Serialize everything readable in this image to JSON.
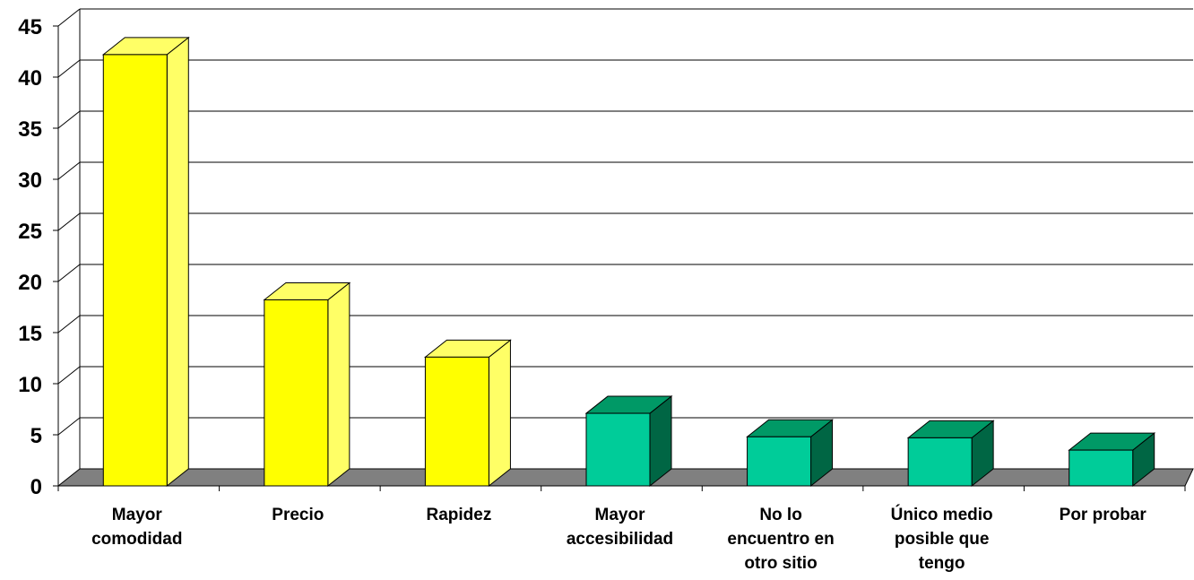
{
  "chart_data": {
    "type": "bar",
    "title": "",
    "xlabel": "",
    "ylabel": "",
    "ylim": [
      0,
      45
    ],
    "yticks": [
      0,
      5,
      10,
      15,
      20,
      25,
      30,
      35,
      40,
      45
    ],
    "grid": true,
    "categories": [
      [
        "Mayor",
        "comodidad"
      ],
      [
        "Precio"
      ],
      [
        "Rapidez"
      ],
      [
        "Mayor",
        "accesibilidad"
      ],
      [
        "No lo",
        "encuentro en",
        "otro sitio"
      ],
      [
        "Único medio",
        "posible que",
        "tengo"
      ],
      [
        "Por probar"
      ]
    ],
    "values": [
      42.2,
      18.2,
      12.6,
      7.1,
      4.8,
      4.7,
      3.5
    ],
    "colors": [
      {
        "front": "#ffff00",
        "side": "#ffff66",
        "top": "#ffff66"
      },
      {
        "front": "#ffff00",
        "side": "#ffff66",
        "top": "#ffff66"
      },
      {
        "front": "#ffff00",
        "side": "#ffff66",
        "top": "#ffff66"
      },
      {
        "front": "#00cc99",
        "side": "#006644",
        "top": "#009966"
      },
      {
        "front": "#00cc99",
        "side": "#006644",
        "top": "#009966"
      },
      {
        "front": "#00cc99",
        "side": "#006644",
        "top": "#009966"
      },
      {
        "front": "#00cc99",
        "side": "#006644",
        "top": "#009966"
      }
    ],
    "floor_color": "#808080"
  }
}
